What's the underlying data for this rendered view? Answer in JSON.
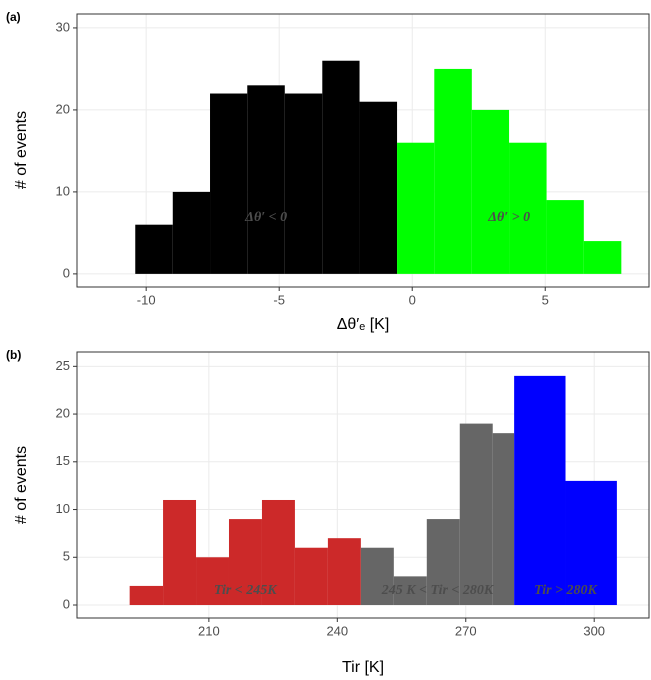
{
  "chart_data": [
    {
      "type": "histogram",
      "label": "(a)",
      "xlabel": "Δθ′ₑ [K]",
      "ylabel": "# of events",
      "xlim": [
        -12.6,
        8.9
      ],
      "ylim": [
        -1.6,
        31.7
      ],
      "xticks": [
        -10,
        -5,
        0,
        5
      ],
      "yticks": [
        0,
        10,
        20,
        30
      ],
      "grid": true,
      "series": [
        {
          "color": "#000000",
          "bins": [
            -10.41,
            -9.0,
            -7.6,
            -6.2,
            -4.79,
            -3.38,
            -1.98,
            -0.57
          ],
          "values": [
            6,
            10,
            22,
            23,
            22,
            26,
            21
          ]
        },
        {
          "color": "#00ff00",
          "bins": [
            -0.57,
            0.83,
            2.24,
            3.64,
            5.05,
            6.45,
            7.86
          ],
          "values": [
            16,
            25,
            20,
            16,
            9,
            4
          ]
        }
      ],
      "annotations": [
        "Δθ′ < 0",
        "Δθ′ > 0"
      ]
    },
    {
      "type": "histogram",
      "label": "(b)",
      "xlabel": "Tir [K]",
      "ylabel": "# of events",
      "xlim": [
        179.2,
        312.8
      ],
      "ylim": [
        -1.36,
        26.5
      ],
      "xticks": [
        210,
        240,
        270,
        300
      ],
      "yticks": [
        0,
        5,
        10,
        15,
        20,
        25
      ],
      "grid": true,
      "series": [
        {
          "color": "#cc2929",
          "bins": [
            191.5,
            199.3,
            207,
            214.7,
            222.4,
            230.1,
            237.8,
            245.5
          ],
          "values": [
            2,
            11,
            5,
            9,
            11,
            6,
            7
          ]
        },
        {
          "color": "#666666",
          "bins": [
            245.5,
            253.2,
            260.9,
            268.6,
            276.3,
            281.3
          ],
          "values": [
            6,
            3,
            9,
            19,
            18
          ]
        },
        {
          "color": "#0000ff",
          "bins": [
            281.3,
            293.3,
            305.3
          ],
          "values": [
            24,
            13
          ]
        }
      ],
      "annotations": [
        "Tir < 245K",
        "245 K < Tir < 280K",
        "Tir > 280K"
      ]
    }
  ]
}
